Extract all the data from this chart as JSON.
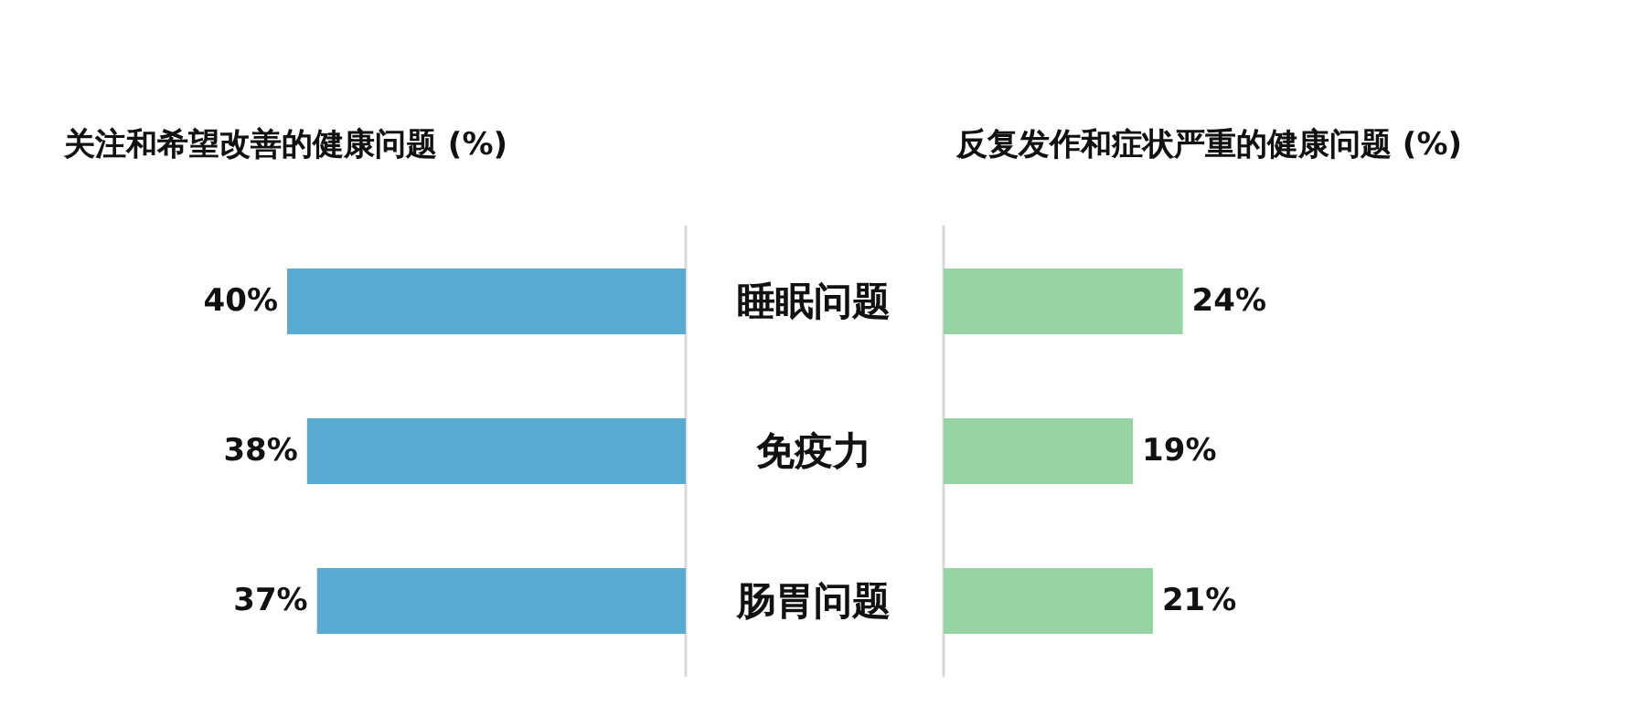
{
  "chart_data": [
    {
      "type": "bar",
      "orientation": "horizontal",
      "title": "关注和希望改善的健康问题 (%)",
      "categories": [
        "睡眠问题",
        "免疫力",
        "肠胃问题"
      ],
      "series": [
        {
          "color": "#5aabd1",
          "values": [
            40,
            38,
            37
          ],
          "value_labels": [
            "40%",
            "38%",
            "37%"
          ]
        }
      ],
      "tick_labels": "y",
      "grid": false
    },
    {
      "type": "bar",
      "orientation": "horizontal",
      "title": "反复发作和症状严重的健康问题 (%)",
      "categories": [
        null,
        null,
        null
      ],
      "series": [
        {
          "color": "#98d4a3",
          "values": [
            24,
            19,
            21
          ],
          "value_labels": [
            "24%",
            "19%",
            "21%"
          ]
        }
      ],
      "tick_labels": false,
      "grid": false
    }
  ]
}
